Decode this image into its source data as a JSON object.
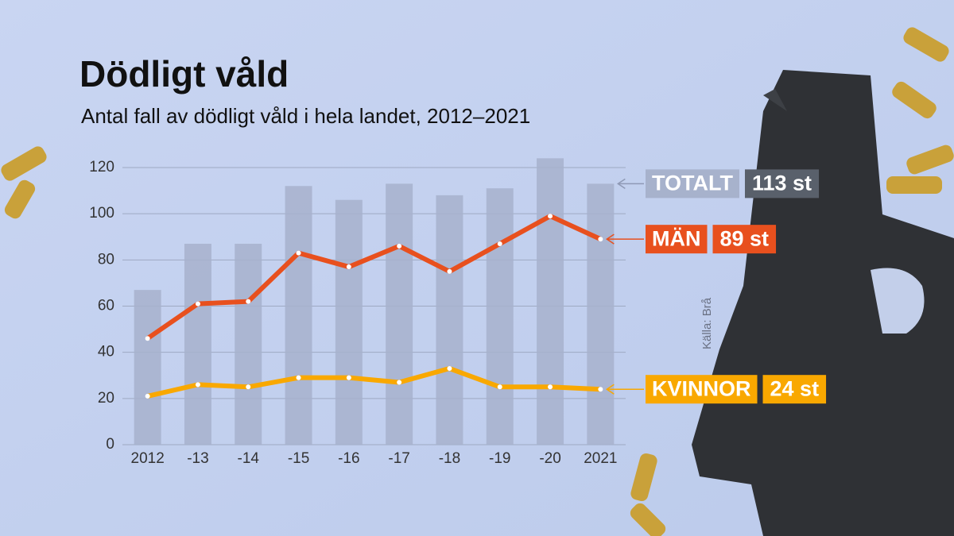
{
  "chart_data": {
    "type": "combo",
    "title": "Dödligt våld",
    "subtitle": "Antal fall av dödligt våld i hela landet, 2012–2021",
    "source": "Källa: Brå",
    "categories": [
      "2012",
      "-13",
      "-14",
      "-15",
      "-16",
      "-17",
      "-18",
      "-19",
      "-20",
      "2021"
    ],
    "series": [
      {
        "name": "TOTALT",
        "type": "bar",
        "color": "#a7b2cc",
        "label_color": "#59606b",
        "values": [
          67,
          87,
          87,
          112,
          106,
          113,
          108,
          111,
          124,
          113
        ],
        "value_labels": [
          null,
          null,
          null,
          null,
          null,
          null,
          null,
          null,
          null,
          "113 st"
        ]
      },
      {
        "name": "MÄN",
        "type": "line",
        "color": "#e8501e",
        "label_color": "#e8501e",
        "values": [
          46,
          61,
          62,
          83,
          77,
          86,
          75,
          87,
          99,
          89
        ],
        "value_labels": [
          null,
          null,
          null,
          null,
          null,
          null,
          null,
          null,
          null,
          "89 st"
        ]
      },
      {
        "name": "KVINNOR",
        "type": "line",
        "color": "#f9a800",
        "label_color": "#f9a800",
        "values": [
          21,
          26,
          25,
          29,
          29,
          27,
          33,
          25,
          25,
          24
        ],
        "value_labels": [
          null,
          null,
          null,
          null,
          null,
          null,
          null,
          null,
          null,
          "24 st"
        ]
      }
    ],
    "ylim": [
      0,
      120
    ],
    "yticks": [
      0,
      20,
      40,
      60,
      80,
      100,
      120
    ],
    "grid": true
  }
}
